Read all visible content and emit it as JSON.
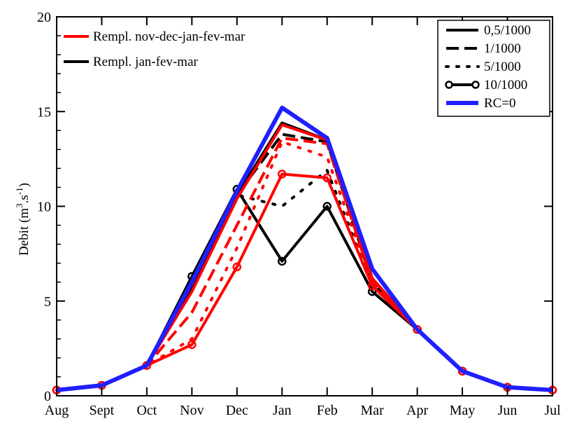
{
  "chart_data": {
    "type": "line",
    "x": [
      "Aug",
      "Sept",
      "Oct",
      "Nov",
      "Dec",
      "Jan",
      "Feb",
      "Mar",
      "Apr",
      "May",
      "Jun",
      "Jul"
    ],
    "ylabel": "Debit (m",
    "ylabel_sup1": "3",
    "ylabel_mid": ".s",
    "ylabel_sup2": "-1",
    "ylabel_end": ")",
    "ylim": [
      0,
      20
    ],
    "yticks": [
      0,
      5,
      10,
      15,
      20
    ],
    "series": [
      {
        "key": "rc0",
        "color": "#1f1fff",
        "style": "solid",
        "width": 6,
        "values": [
          0.3,
          0.55,
          1.6,
          6.0,
          10.8,
          15.2,
          13.6,
          6.7,
          3.5,
          1.3,
          0.45,
          0.3
        ]
      },
      {
        "key": "black_05",
        "color": "#000000",
        "style": "solid",
        "width": 4,
        "values": [
          0.3,
          0.55,
          1.6,
          5.8,
          10.6,
          14.4,
          13.5,
          6.2,
          3.5,
          1.3,
          0.45,
          0.3
        ]
      },
      {
        "key": "black_1",
        "color": "#000000",
        "style": "dash",
        "width": 4,
        "values": [
          0.3,
          0.55,
          1.6,
          5.6,
          10.6,
          13.8,
          13.4,
          6.0,
          3.5,
          1.3,
          0.45,
          0.3
        ]
      },
      {
        "key": "black_5",
        "color": "#000000",
        "style": "dot",
        "width": 4,
        "values": [
          0.3,
          0.55,
          1.6,
          5.6,
          10.6,
          10.0,
          11.9,
          5.8,
          3.5,
          1.3,
          0.45,
          0.3
        ]
      },
      {
        "key": "black_10",
        "color": "#000000",
        "style": "circle",
        "width": 4,
        "values": [
          0.3,
          0.55,
          1.6,
          6.3,
          10.9,
          7.1,
          10.0,
          5.5,
          3.5,
          1.3,
          0.45,
          0.3
        ]
      },
      {
        "key": "red_05",
        "color": "#ff0000",
        "style": "solid",
        "width": 4,
        "values": [
          0.3,
          0.55,
          1.6,
          5.5,
          10.4,
          14.3,
          13.5,
          6.2,
          3.5,
          1.3,
          0.45,
          0.3
        ]
      },
      {
        "key": "red_1",
        "color": "#ff0000",
        "style": "dash",
        "width": 4,
        "values": [
          0.3,
          0.55,
          1.6,
          4.4,
          9.0,
          13.6,
          13.3,
          6.0,
          3.5,
          1.3,
          0.45,
          0.3
        ]
      },
      {
        "key": "red_5",
        "color": "#ff0000",
        "style": "dot",
        "width": 4,
        "values": [
          0.3,
          0.55,
          1.6,
          3.0,
          7.8,
          13.4,
          12.6,
          5.9,
          3.5,
          1.3,
          0.45,
          0.3
        ]
      },
      {
        "key": "red_10",
        "color": "#ff0000",
        "style": "circle",
        "width": 4,
        "values": [
          0.3,
          0.55,
          1.6,
          2.7,
          6.8,
          11.7,
          11.5,
          5.8,
          3.5,
          1.3,
          0.45,
          0.3
        ]
      }
    ],
    "legend_groups": [
      {
        "name": "Rempl. nov-dec-jan-fev-mar",
        "color": "#ff0000"
      },
      {
        "name": "Rempl. jan-fev-mar",
        "color": "#000000"
      }
    ],
    "legend_styles": [
      {
        "name": "0,5/1000",
        "style": "solid",
        "color": "#000000"
      },
      {
        "name": "1/1000",
        "style": "dash",
        "color": "#000000"
      },
      {
        "name": "5/1000",
        "style": "dot",
        "color": "#000000"
      },
      {
        "name": "10/1000",
        "style": "circle",
        "color": "#000000"
      },
      {
        "name": "RC=0",
        "style": "solid",
        "color": "#1f1fff"
      }
    ],
    "legend_groups_position": "top-left",
    "legend_styles_position": "top-right",
    "grid": false
  }
}
